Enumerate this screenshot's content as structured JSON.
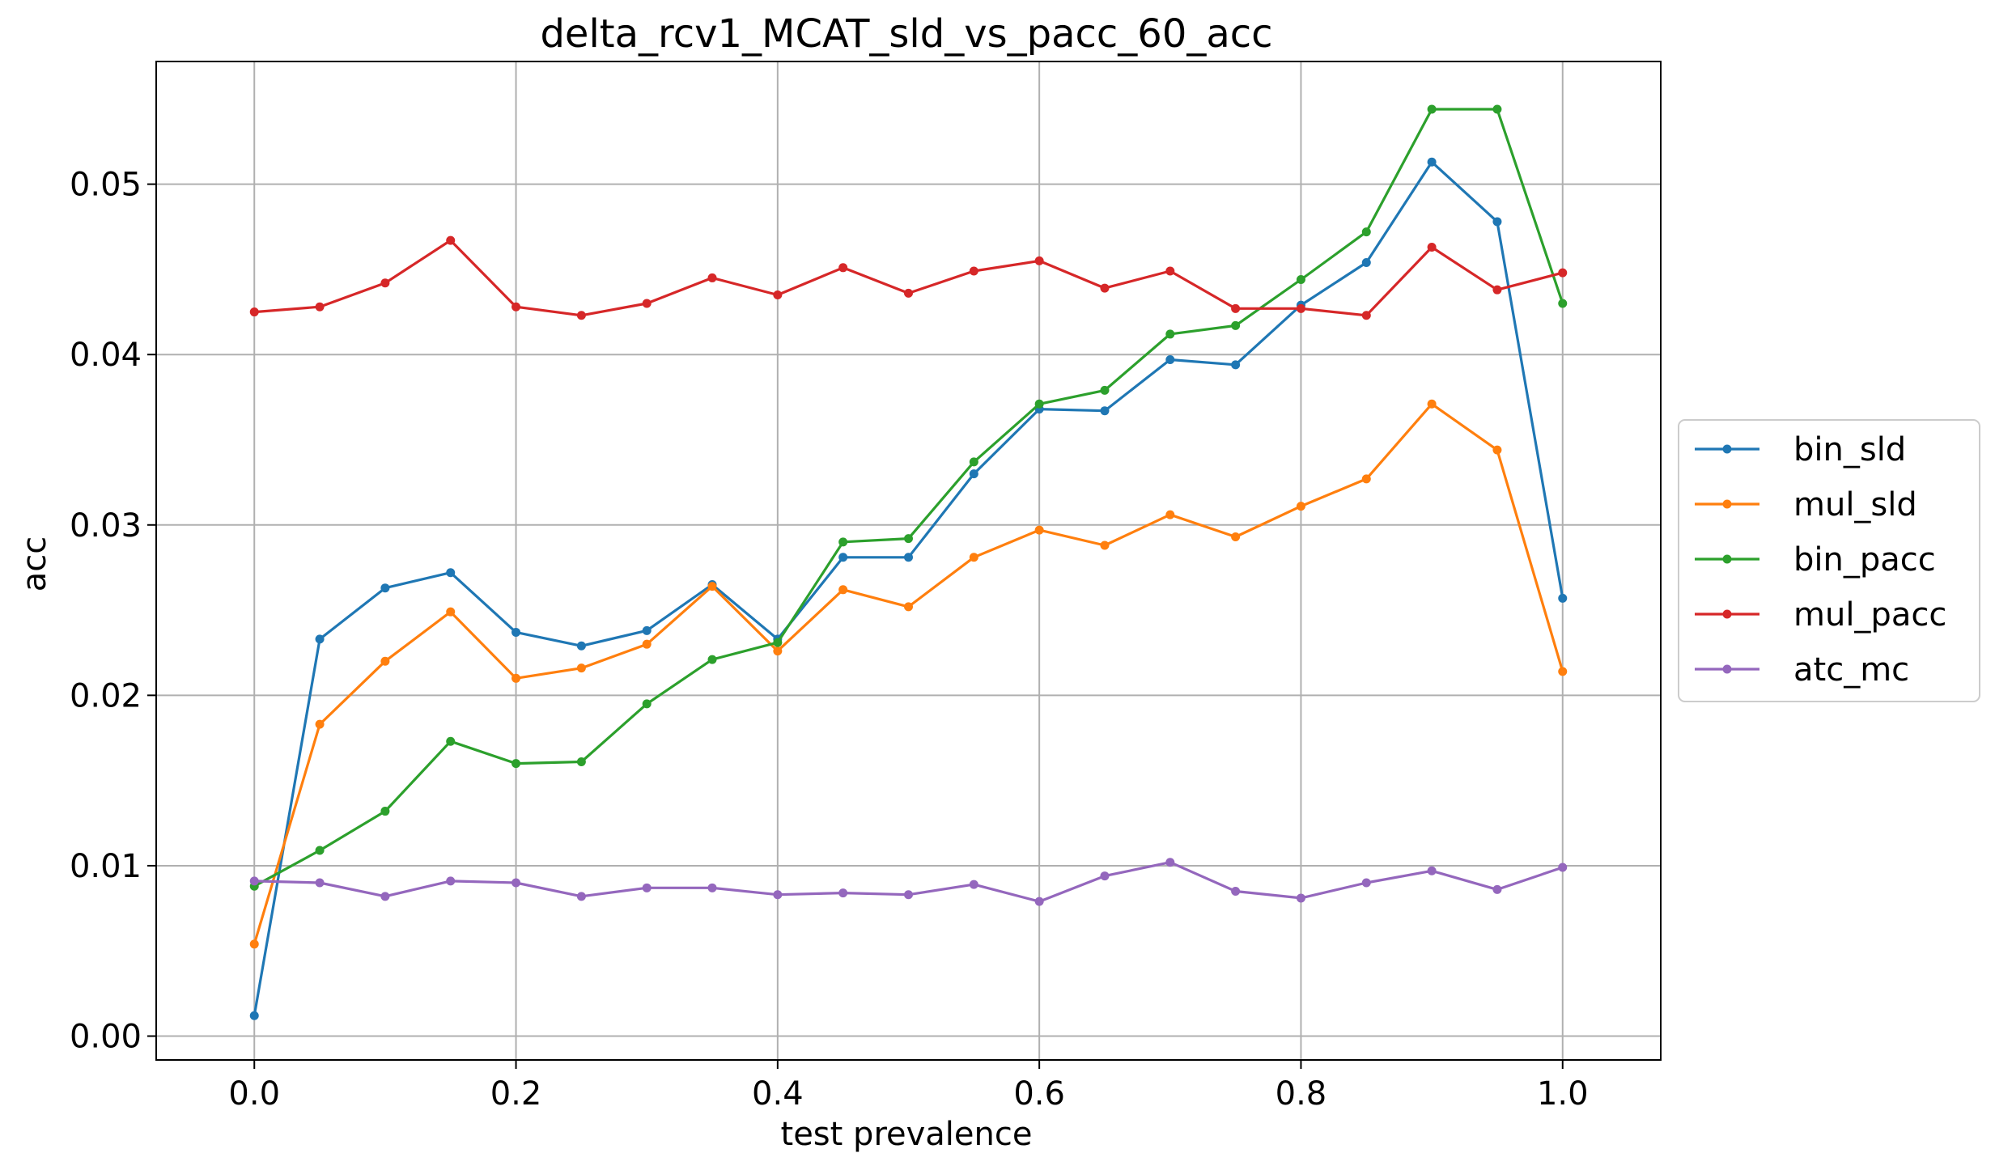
{
  "chart_data": {
    "type": "line",
    "title": "delta_rcv1_MCAT_sld_vs_pacc_60_acc",
    "xlabel": "test prevalence",
    "ylabel": "acc",
    "xlim": [
      -0.075,
      1.075
    ],
    "ylim": [
      -0.0014,
      0.0572
    ],
    "xticks": [
      0.0,
      0.2,
      0.4,
      0.6,
      0.8,
      1.0
    ],
    "xtick_labels": [
      "0.0",
      "0.2",
      "0.4",
      "0.6",
      "0.8",
      "1.0"
    ],
    "yticks": [
      0.0,
      0.01,
      0.02,
      0.03,
      0.04,
      0.05
    ],
    "ytick_labels": [
      "0.00",
      "0.01",
      "0.02",
      "0.03",
      "0.04",
      "0.05"
    ],
    "grid": true,
    "legend_position": "center-right-outside",
    "x": [
      0.0,
      0.05,
      0.1,
      0.15,
      0.2,
      0.25,
      0.3,
      0.35,
      0.4,
      0.45,
      0.5,
      0.55,
      0.6,
      0.65,
      0.7,
      0.75,
      0.8,
      0.85,
      0.9,
      0.95,
      1.0
    ],
    "series": [
      {
        "name": "bin_sld",
        "color": "#1f77b4",
        "values": [
          0.0012,
          0.0233,
          0.0263,
          0.0272,
          0.0237,
          0.0229,
          0.0238,
          0.0265,
          0.0233,
          0.0281,
          0.0281,
          0.033,
          0.0368,
          0.0367,
          0.0397,
          0.0394,
          0.0429,
          0.0454,
          0.0513,
          0.0478,
          0.0257
        ]
      },
      {
        "name": "mul_sld",
        "color": "#ff7f0e",
        "values": [
          0.0054,
          0.0183,
          0.022,
          0.0249,
          0.021,
          0.0216,
          0.023,
          0.0264,
          0.0226,
          0.0262,
          0.0252,
          0.0281,
          0.0297,
          0.0288,
          0.0306,
          0.0293,
          0.0311,
          0.0327,
          0.0371,
          0.0344,
          0.0214
        ]
      },
      {
        "name": "bin_pacc",
        "color": "#2ca02c",
        "values": [
          0.0088,
          0.0109,
          0.0132,
          0.0173,
          0.016,
          0.0161,
          0.0195,
          0.0221,
          0.0231,
          0.029,
          0.0292,
          0.0337,
          0.0371,
          0.0379,
          0.0412,
          0.0417,
          0.0444,
          0.0472,
          0.0544,
          0.0544,
          0.043
        ]
      },
      {
        "name": "mul_pacc",
        "color": "#d62728",
        "values": [
          0.0425,
          0.0428,
          0.0442,
          0.0467,
          0.0428,
          0.0423,
          0.043,
          0.0445,
          0.0435,
          0.0451,
          0.0436,
          0.0449,
          0.0455,
          0.0439,
          0.0449,
          0.0427,
          0.0427,
          0.0423,
          0.0463,
          0.0438,
          0.0448
        ]
      },
      {
        "name": "atc_mc",
        "color": "#9467bd",
        "values": [
          0.0091,
          0.009,
          0.0082,
          0.0091,
          0.009,
          0.0082,
          0.0087,
          0.0087,
          0.0083,
          0.0084,
          0.0083,
          0.0089,
          0.0079,
          0.0094,
          0.0102,
          0.0085,
          0.0081,
          0.009,
          0.0097,
          0.0086,
          0.0099
        ]
      }
    ]
  }
}
